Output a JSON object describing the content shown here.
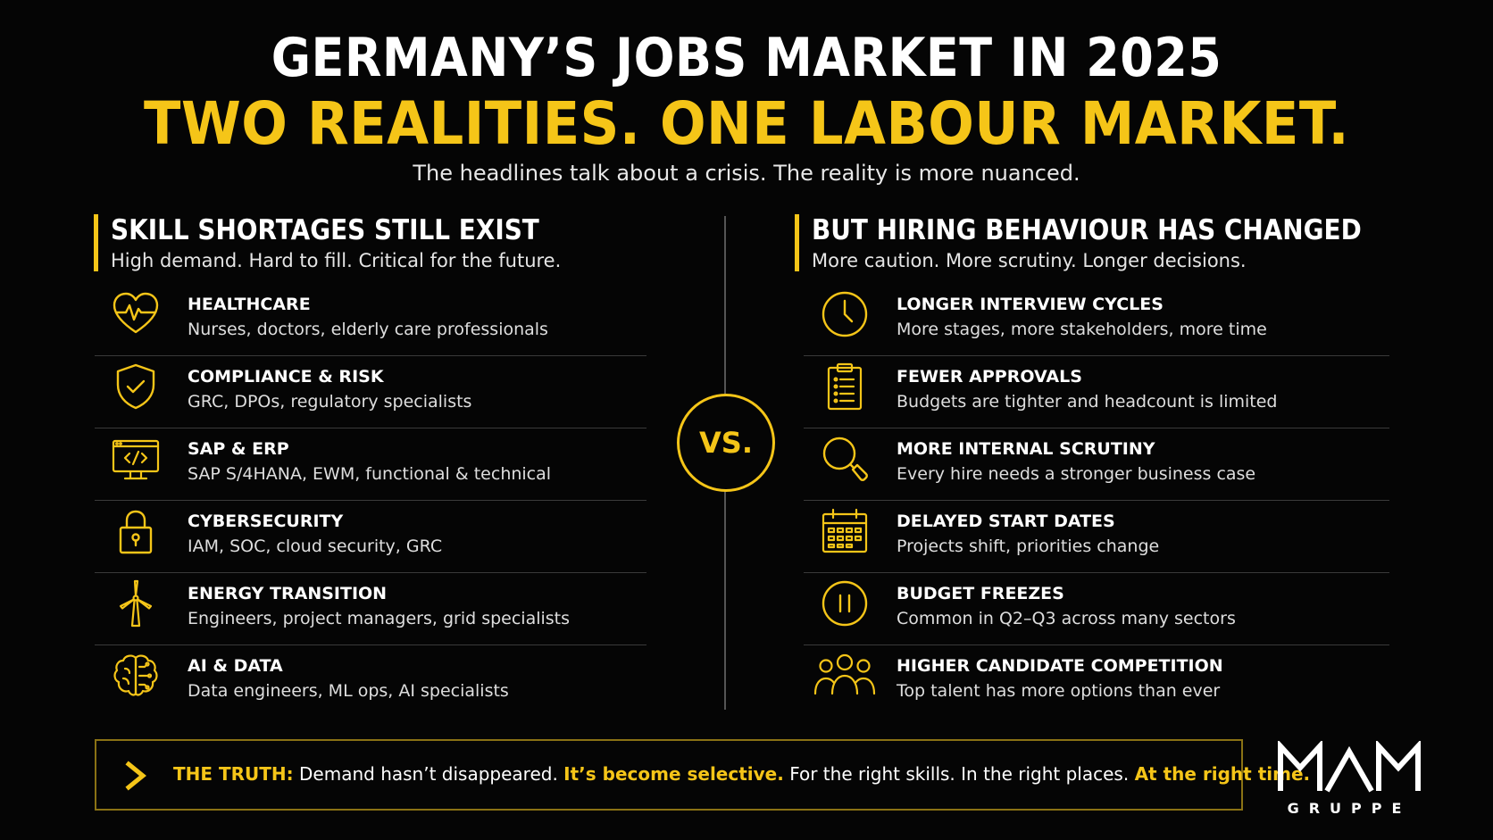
{
  "header": {
    "title": "GERMANY’S JOBS MARKET IN 2025",
    "headline": "TWO REALITIES. ONE LABOUR MARKET.",
    "subtitle": "The headlines talk about a crisis. The reality is more nuanced."
  },
  "left": {
    "heading": "SKILL SHORTAGES STILL EXIST",
    "subheading": "High demand. Hard to fill. Critical for the future.",
    "items": [
      {
        "icon": "heart-pulse-icon",
        "title": "HEALTHCARE",
        "desc": "Nurses, doctors, elderly care professionals"
      },
      {
        "icon": "shield-check-icon",
        "title": "COMPLIANCE & RISK",
        "desc": "GRC, DPOs, regulatory specialists"
      },
      {
        "icon": "code-monitor-icon",
        "title": "SAP & ERP",
        "desc": "SAP S/4HANA, EWM, functional & technical"
      },
      {
        "icon": "padlock-icon",
        "title": "CYBERSECURITY",
        "desc": "IAM, SOC, cloud security, GRC"
      },
      {
        "icon": "wind-turbine-icon",
        "title": "ENERGY TRANSITION",
        "desc": "Engineers, project managers, grid specialists"
      },
      {
        "icon": "brain-circuit-icon",
        "title": "AI & DATA",
        "desc": "Data engineers, ML ops, AI specialists"
      }
    ]
  },
  "vs": "VS.",
  "right": {
    "heading": "BUT HIRING BEHAVIOUR HAS CHANGED",
    "subheading": "More caution. More scrutiny. Longer decisions.",
    "items": [
      {
        "icon": "clock-icon",
        "title": "LONGER INTERVIEW CYCLES",
        "desc": "More stages, more stakeholders, more time"
      },
      {
        "icon": "clipboard-list-icon",
        "title": "FEWER APPROVALS",
        "desc": "Budgets are tighter and headcount is limited"
      },
      {
        "icon": "magnifier-icon",
        "title": "MORE INTERNAL SCRUTINY",
        "desc": "Every hire needs a stronger business case"
      },
      {
        "icon": "calendar-icon",
        "title": "DELAYED START DATES",
        "desc": "Projects shift, priorities change"
      },
      {
        "icon": "pause-icon",
        "title": "BUDGET FREEZES",
        "desc": "Common in Q2–Q3 across many sectors"
      },
      {
        "icon": "people-group-icon",
        "title": "HIGHER CANDIDATE COMPETITION",
        "desc": "Top talent has more options than ever"
      }
    ]
  },
  "truth": {
    "label": "THE TRUTH:",
    "part1": "Demand hasn’t disappeared.",
    "highlight1": "It’s become selective.",
    "part2": "For the right skills. In the right places.",
    "highlight2": "At the right time."
  },
  "logo": {
    "mark": "MAM",
    "sub": "GRUPPE"
  },
  "colors": {
    "accent": "#f5c518",
    "background": "#050505",
    "divider": "#3a3a3a"
  }
}
